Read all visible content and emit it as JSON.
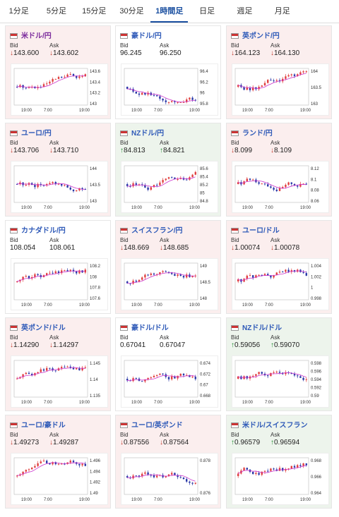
{
  "tabs": [
    "1分足",
    "5分足",
    "15分足",
    "30分足",
    "1時間足",
    "日足",
    "週足",
    "月足"
  ],
  "active_tab": 4,
  "labels": {
    "bid": "Bid",
    "ask": "Ask"
  },
  "colors": {
    "down_bg": "#fbeeee",
    "up_bg": "#edf4ec",
    "down": "#c0392b",
    "up": "#1f8a2e",
    "candle_up": "#e04040",
    "candle_down": "#2c3aa8",
    "ma": "#cc33cc"
  },
  "cards": [
    {
      "name": "米ドル/円",
      "dir": "down",
      "bid": "143.600",
      "ask": "143.602",
      "ticks": [
        "143.6",
        "143.4",
        "143.2",
        "143"
      ],
      "xlabels": [
        "19:00",
        "7:00",
        "19:00"
      ],
      "title_color": "purple"
    },
    {
      "name": "豪ドル/円",
      "dir": "none",
      "bid": "96.245",
      "ask": "96.250",
      "ticks": [
        "96.4",
        "96.2",
        "96",
        "95.8"
      ],
      "xlabels": [
        "19:00",
        "7:00",
        "19:00"
      ]
    },
    {
      "name": "英ポンド/円",
      "dir": "down",
      "bid": "164.123",
      "ask": "164.130",
      "ticks": [
        "164",
        "163.5",
        "163"
      ],
      "xlabels": [
        "19:00",
        "7:00",
        "19:00"
      ]
    },
    {
      "name": "ユーロ/円",
      "dir": "down",
      "bid": "143.706",
      "ask": "143.710",
      "ticks": [
        "144",
        "143.5",
        "143"
      ],
      "xlabels": [
        "19:00",
        "7:00",
        "19:00"
      ]
    },
    {
      "name": "NZドル/円",
      "dir": "up",
      "bid": "84.813",
      "ask": "84.821",
      "ticks": [
        "85.6",
        "85.4",
        "85.2",
        "85",
        "84.8"
      ],
      "xlabels": [
        "19:00",
        "7:00",
        "19:00"
      ]
    },
    {
      "name": "ランド/円",
      "dir": "down",
      "bid": "8.099",
      "ask": "8.109",
      "ticks": [
        "8.12",
        "8.1",
        "8.08",
        "8.06"
      ],
      "xlabels": [
        "19:00",
        "7:00",
        "19:00"
      ]
    },
    {
      "name": "カナダドル/円",
      "dir": "none",
      "bid": "108.054",
      "ask": "108.061",
      "ticks": [
        "108.2",
        "108",
        "107.8",
        "107.6"
      ],
      "xlabels": [
        "19:00",
        "7:00",
        "19:00"
      ]
    },
    {
      "name": "スイスフラン/円",
      "dir": "down",
      "bid": "148.669",
      "ask": "148.685",
      "ticks": [
        "149",
        "148.5",
        "148"
      ],
      "xlabels": [
        "19:00",
        "7:00",
        "19:00"
      ]
    },
    {
      "name": "ユーロ/ドル",
      "dir": "down",
      "bid": "1.00074",
      "ask": "1.00078",
      "ticks": [
        "1.004",
        "1.002",
        "1",
        "0.998"
      ],
      "xlabels": [
        "19:00",
        "7:00",
        "19:00"
      ]
    },
    {
      "name": "英ポンド/ドル",
      "dir": "down",
      "bid": "1.14290",
      "ask": "1.14297",
      "ticks": [
        "1.145",
        "1.14",
        "1.135"
      ],
      "xlabels": [
        "19:00",
        "7:00",
        "19:00"
      ]
    },
    {
      "name": "豪ドル/ドル",
      "dir": "none",
      "bid": "0.67041",
      "ask": "0.67047",
      "ticks": [
        "0.674",
        "0.672",
        "0.67",
        "0.668"
      ],
      "xlabels": [
        "19:00",
        "7:00",
        "19:00"
      ]
    },
    {
      "name": "NZドル/ドル",
      "dir": "up",
      "bid": "0.59056",
      "ask": "0.59070",
      "ticks": [
        "0.598",
        "0.596",
        "0.594",
        "0.592",
        "0.59"
      ],
      "xlabels": [
        "19:00",
        "7:00",
        "19:00"
      ]
    },
    {
      "name": "ユーロ/豪ドル",
      "dir": "down",
      "bid": "1.49273",
      "ask": "1.49287",
      "ticks": [
        "1.496",
        "1.494",
        "1.492",
        "1.49"
      ],
      "xlabels": [
        "19:00",
        "7:00",
        "19:00"
      ]
    },
    {
      "name": "ユーロ/英ポンド",
      "dir": "down",
      "bid": "0.87556",
      "ask": "0.87564",
      "ticks": [
        "0.878",
        "0.876"
      ],
      "xlabels": [
        "19:00",
        "7:00",
        "19:00"
      ]
    },
    {
      "name": "米ドル/スイスフラン",
      "dir": "up",
      "bid": "0.96579",
      "ask": "0.96594",
      "ticks": [
        "0.968",
        "0.966",
        "0.964"
      ],
      "xlabels": [
        "19:00",
        "7:00",
        "19:00"
      ]
    }
  ]
}
